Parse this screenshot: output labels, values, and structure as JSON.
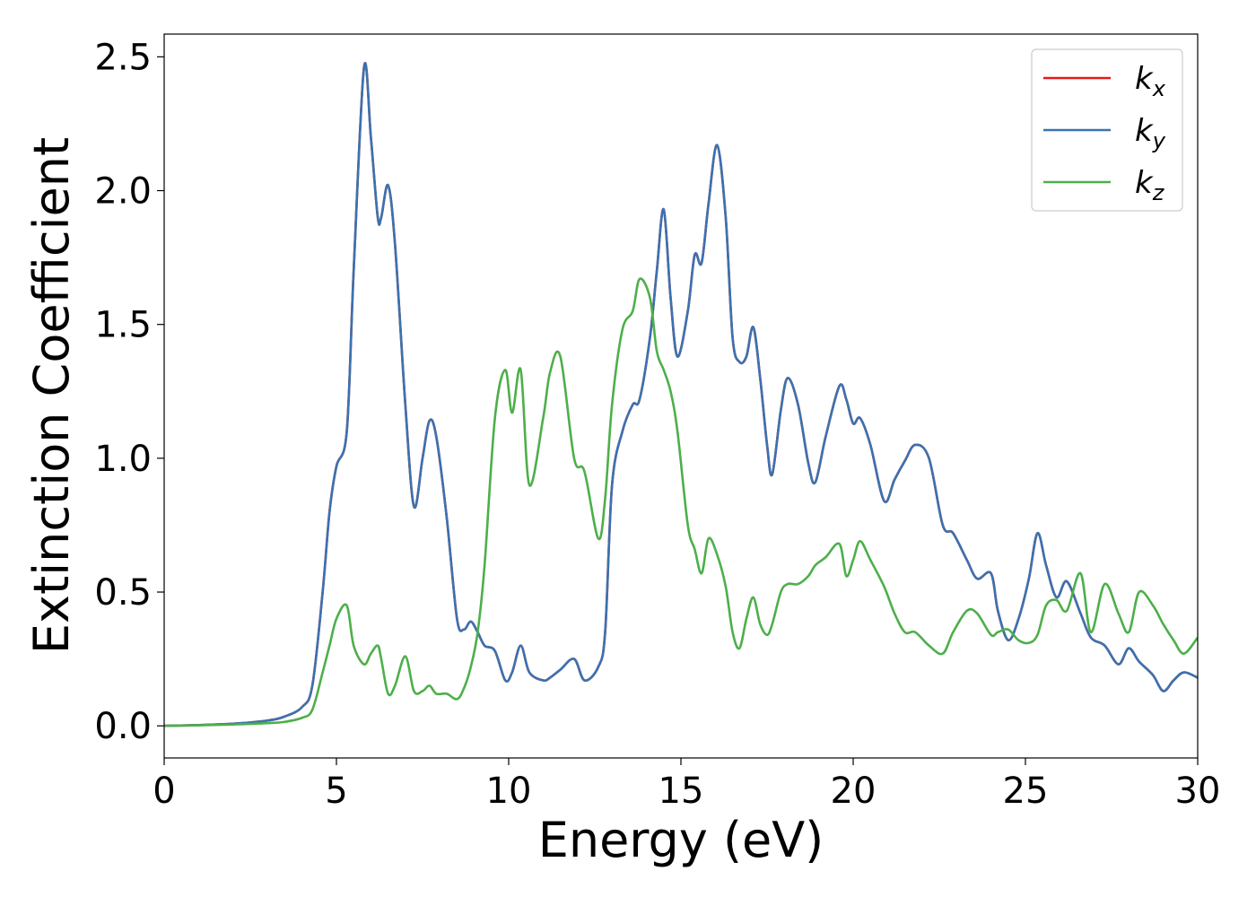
{
  "chart_data": {
    "type": "line",
    "x_label": "Energy (eV)",
    "y_label": "Extinction Coefficient",
    "xlim": [
      0,
      30
    ],
    "ylim": [
      -0.12,
      2.585
    ],
    "xticks": [
      0,
      5,
      10,
      15,
      20,
      25,
      30
    ],
    "yticks": [
      {
        "value": 0,
        "label": "0.0"
      },
      0.5,
      {
        "value": 1,
        "label": "1.0"
      },
      1.5,
      {
        "value": 2,
        "label": "2.0"
      },
      2.5
    ],
    "legend": "upper right",
    "grid": false,
    "x": [
      0,
      1,
      2,
      3,
      3.5,
      4,
      4.3,
      4.6,
      4.8,
      5.0,
      5.3,
      5.5,
      5.8,
      6.0,
      6.2,
      6.3,
      6.5,
      6.7,
      7.0,
      7.25,
      7.5,
      7.7,
      7.9,
      8.2,
      8.5,
      8.7,
      8.9,
      9.1,
      9.3,
      9.6,
      9.9,
      10.1,
      10.35,
      10.6,
      11.0,
      11.2,
      11.5,
      11.9,
      12.2,
      12.6,
      12.8,
      13.0,
      13.3,
      13.6,
      13.8,
      14.1,
      14.3,
      14.5,
      14.7,
      14.9,
      15.2,
      15.4,
      15.6,
      15.8,
      16.05,
      16.3,
      16.5,
      16.7,
      16.9,
      17.1,
      17.3,
      17.5,
      17.65,
      17.9,
      18.1,
      18.4,
      18.7,
      18.9,
      19.2,
      19.6,
      19.8,
      20.0,
      20.2,
      20.5,
      20.9,
      21.2,
      21.5,
      21.8,
      22.2,
      22.6,
      22.9,
      23.3,
      23.6,
      24.0,
      24.2,
      24.5,
      24.8,
      25.1,
      25.35,
      25.6,
      25.9,
      26.2,
      26.6,
      26.9,
      27.3,
      27.7,
      28.0,
      28.3,
      28.7,
      29.0,
      29.3,
      29.6,
      30
    ],
    "series": [
      {
        "name": "kx",
        "color": "#e41a1c",
        "values": [
          0,
          0.003,
          0.008,
          0.02,
          0.035,
          0.07,
          0.15,
          0.5,
          0.8,
          0.97,
          1.1,
          1.7,
          2.46,
          2.2,
          1.9,
          1.9,
          2.02,
          1.8,
          1.2,
          0.82,
          1.0,
          1.14,
          1.08,
          0.78,
          0.4,
          0.36,
          0.39,
          0.35,
          0.3,
          0.28,
          0.17,
          0.2,
          0.3,
          0.2,
          0.17,
          0.18,
          0.21,
          0.25,
          0.17,
          0.22,
          0.35,
          0.9,
          1.1,
          1.2,
          1.22,
          1.45,
          1.7,
          1.93,
          1.6,
          1.38,
          1.55,
          1.76,
          1.73,
          1.95,
          2.17,
          1.9,
          1.45,
          1.36,
          1.38,
          1.49,
          1.3,
          1.05,
          0.94,
          1.18,
          1.3,
          1.2,
          0.98,
          0.91,
          1.08,
          1.27,
          1.22,
          1.13,
          1.15,
          1.05,
          0.84,
          0.92,
          0.99,
          1.05,
          1.0,
          0.75,
          0.72,
          0.62,
          0.55,
          0.57,
          0.43,
          0.32,
          0.4,
          0.55,
          0.72,
          0.6,
          0.48,
          0.54,
          0.42,
          0.33,
          0.3,
          0.23,
          0.29,
          0.24,
          0.19,
          0.13,
          0.17,
          0.2,
          0.18
        ]
      },
      {
        "name": "ky",
        "color": "#3a72b0",
        "values": [
          0,
          0.003,
          0.008,
          0.02,
          0.035,
          0.07,
          0.15,
          0.5,
          0.8,
          0.97,
          1.1,
          1.7,
          2.46,
          2.2,
          1.9,
          1.9,
          2.02,
          1.8,
          1.2,
          0.82,
          1.0,
          1.14,
          1.08,
          0.78,
          0.4,
          0.36,
          0.39,
          0.35,
          0.3,
          0.28,
          0.17,
          0.2,
          0.3,
          0.2,
          0.17,
          0.18,
          0.21,
          0.25,
          0.17,
          0.22,
          0.35,
          0.9,
          1.1,
          1.2,
          1.22,
          1.45,
          1.7,
          1.93,
          1.6,
          1.38,
          1.55,
          1.76,
          1.73,
          1.95,
          2.17,
          1.9,
          1.45,
          1.36,
          1.38,
          1.49,
          1.3,
          1.05,
          0.94,
          1.18,
          1.3,
          1.2,
          0.98,
          0.91,
          1.08,
          1.27,
          1.22,
          1.13,
          1.15,
          1.05,
          0.84,
          0.92,
          0.99,
          1.05,
          1.0,
          0.75,
          0.72,
          0.62,
          0.55,
          0.57,
          0.43,
          0.32,
          0.4,
          0.55,
          0.72,
          0.6,
          0.48,
          0.54,
          0.42,
          0.33,
          0.3,
          0.23,
          0.29,
          0.24,
          0.19,
          0.13,
          0.17,
          0.2,
          0.18
        ]
      },
      {
        "name": "kz",
        "color": "#4daf4a",
        "values": [
          0,
          0.002,
          0.005,
          0.01,
          0.015,
          0.03,
          0.06,
          0.2,
          0.3,
          0.4,
          0.45,
          0.3,
          0.23,
          0.27,
          0.3,
          0.25,
          0.12,
          0.15,
          0.26,
          0.13,
          0.13,
          0.15,
          0.12,
          0.12,
          0.1,
          0.14,
          0.22,
          0.35,
          0.6,
          1.15,
          1.33,
          1.17,
          1.33,
          0.9,
          1.15,
          1.32,
          1.38,
          1.0,
          0.95,
          0.7,
          0.85,
          1.2,
          1.48,
          1.55,
          1.67,
          1.6,
          1.4,
          1.33,
          1.25,
          1.1,
          0.75,
          0.66,
          0.57,
          0.7,
          0.64,
          0.52,
          0.35,
          0.29,
          0.4,
          0.48,
          0.38,
          0.34,
          0.38,
          0.5,
          0.53,
          0.53,
          0.56,
          0.6,
          0.63,
          0.68,
          0.56,
          0.62,
          0.69,
          0.62,
          0.52,
          0.42,
          0.35,
          0.35,
          0.3,
          0.27,
          0.35,
          0.43,
          0.42,
          0.34,
          0.35,
          0.36,
          0.32,
          0.31,
          0.34,
          0.45,
          0.47,
          0.43,
          0.57,
          0.35,
          0.53,
          0.42,
          0.35,
          0.5,
          0.45,
          0.38,
          0.32,
          0.27,
          0.33
        ]
      }
    ]
  }
}
